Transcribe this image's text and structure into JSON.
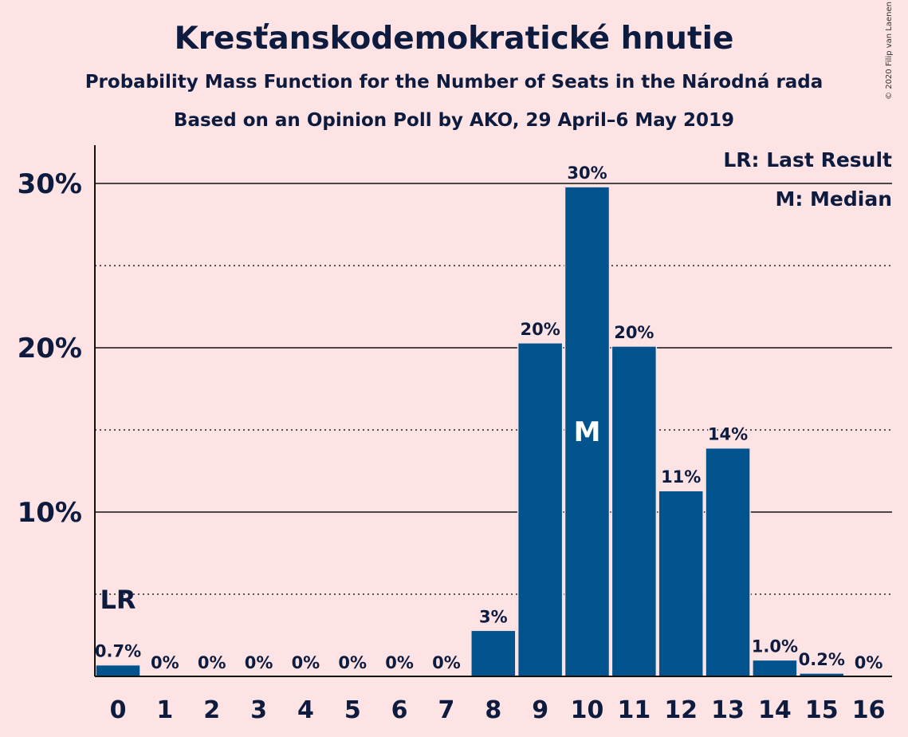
{
  "header": {
    "title": "Kresťanskodemokratické hnutie",
    "subtitle": "Probability Mass Function for the Number of Seats in the Národná rada",
    "subtitle2": "Based on an Opinion Poll by AKO, 29 April–6 May 2019",
    "copyright": "© 2020 Filip van Laenen"
  },
  "legend": {
    "lr": "LR: Last Result",
    "m": "M: Median"
  },
  "colors": {
    "background": "#fde3e4",
    "bar": "#00538c",
    "text": "#0d1b3e"
  },
  "chart_data": {
    "type": "bar",
    "categories": [
      "0",
      "1",
      "2",
      "3",
      "4",
      "5",
      "6",
      "7",
      "8",
      "9",
      "10",
      "11",
      "12",
      "13",
      "14",
      "15",
      "16"
    ],
    "values": [
      0.7,
      0,
      0,
      0,
      0,
      0,
      0,
      0,
      2.8,
      20.3,
      29.8,
      20.1,
      11.3,
      13.9,
      1.0,
      0.2,
      0
    ],
    "labels": [
      "0.7%",
      "0%",
      "0%",
      "0%",
      "0%",
      "0%",
      "0%",
      "0%",
      "3%",
      "20%",
      "30%",
      "20%",
      "11%",
      "14%",
      "1.0%",
      "0.2%",
      "0%"
    ],
    "yticks": [
      10,
      20,
      30
    ],
    "ytick_labels": [
      "10%",
      "20%",
      "30%"
    ],
    "ylim": [
      0,
      32.5
    ],
    "last_result_seat": 0,
    "last_result_label": "LR",
    "median_seat": 10,
    "median_label": "M",
    "legend_position": "top-right"
  }
}
